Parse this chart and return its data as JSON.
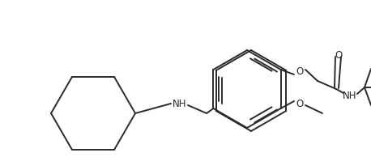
{
  "background_color": "#ffffff",
  "line_color": "#2a2a2a",
  "line_width": 1.4,
  "font_size": 8.5,
  "figsize": [
    4.58,
    1.94
  ],
  "dpi": 100,
  "xlim": [
    0,
    458
  ],
  "ylim": [
    0,
    194
  ]
}
